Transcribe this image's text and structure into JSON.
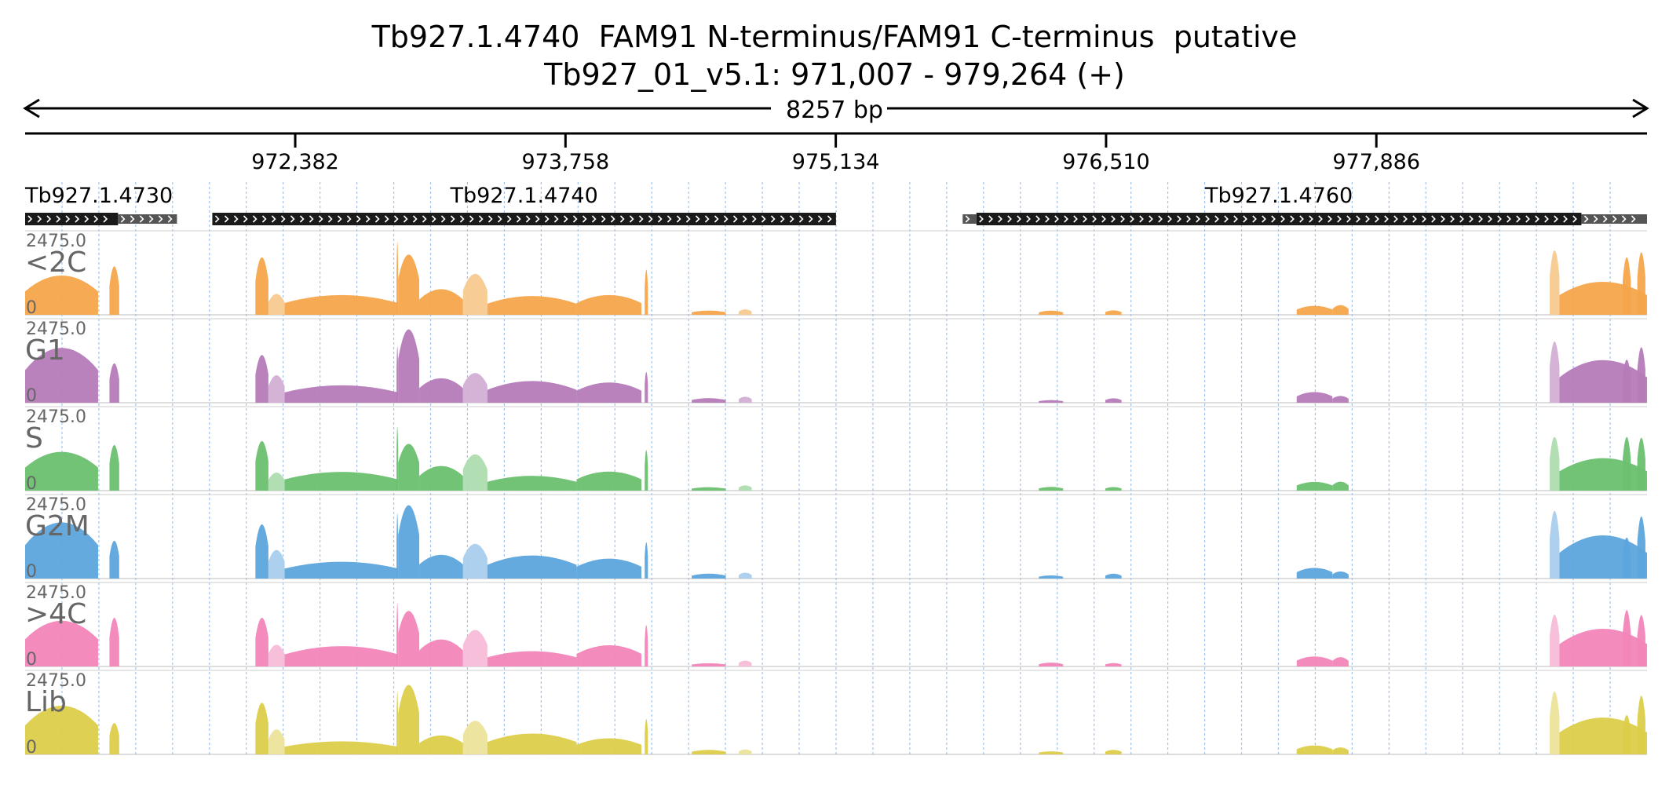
{
  "header": {
    "title_line1": "Tb927.1.4740  FAM91 N-terminus/FAM91 C-terminus  putative",
    "title_line2": "Tb927_01_v5.1: 971,007 - 979,264 (+)",
    "span_label": "8257 bp"
  },
  "region": {
    "start": 971007,
    "end": 979264
  },
  "ruler": {
    "ticks": [
      {
        "pos": 972382,
        "label": "972,382"
      },
      {
        "pos": 973758,
        "label": "973,758"
      },
      {
        "pos": 975134,
        "label": "975,134"
      },
      {
        "pos": 976510,
        "label": "976,510"
      },
      {
        "pos": 977886,
        "label": "977,886"
      }
    ]
  },
  "genes": [
    {
      "name": "Tb927.1.4730",
      "label_align": "left",
      "cds": [
        971007,
        971480
      ],
      "utr": [
        971480,
        971780
      ]
    },
    {
      "name": "Tb927.1.4740",
      "label_align": "center",
      "cds": [
        971960,
        975135
      ],
      "utr": null
    },
    {
      "name": "Tb927.1.4760",
      "label_align": "center",
      "utr5": [
        975780,
        975850
      ],
      "cds": [
        975850,
        978930
      ],
      "utr": [
        978930,
        979264
      ]
    }
  ],
  "tracks": [
    {
      "name": "<2C",
      "max_label": "2475.0",
      "min_label": "0",
      "color": "#f5a54a",
      "light": "#f8c98f"
    },
    {
      "name": "G1",
      "max_label": "2475.0",
      "min_label": "0",
      "color": "#b57bb8",
      "light": "#d3afd5"
    },
    {
      "name": "S",
      "max_label": "2475.0",
      "min_label": "0",
      "color": "#6cc070",
      "light": "#aedcb0"
    },
    {
      "name": "G2M",
      "max_label": "2475.0",
      "min_label": "0",
      "color": "#5da5dc",
      "light": "#a8cdec"
    },
    {
      "name": ">4C",
      "max_label": "2475.0",
      "min_label": "0",
      "color": "#f285b8",
      "light": "#f8bcd8"
    },
    {
      "name": "Lib",
      "max_label": "2475.0",
      "min_label": "0",
      "color": "#dccd4a",
      "light": "#ece39a"
    }
  ],
  "colors": {
    "gene_fill": "#1a1a1a",
    "utr_fill": "#555555",
    "grid": "#8ab4e8",
    "axis": "#000000",
    "label_gray": "#666666"
  }
}
